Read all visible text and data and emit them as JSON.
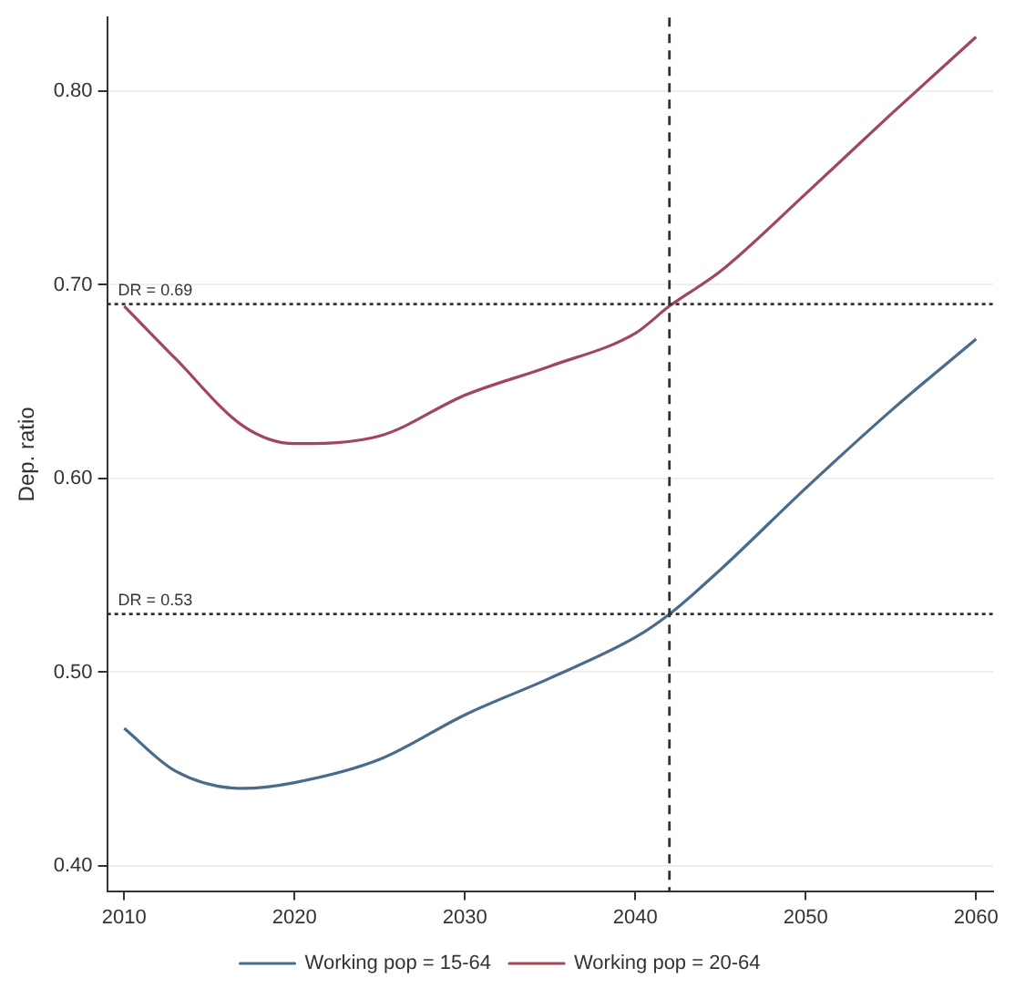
{
  "chart_data": {
    "type": "line",
    "ylabel": "Dep. ratio",
    "x": [
      2010,
      2013,
      2017,
      2020,
      2025,
      2030,
      2035,
      2040,
      2042,
      2045,
      2050,
      2055,
      2060
    ],
    "series": [
      {
        "name": "Working pop = 15-64",
        "color": "#4a6b8a",
        "values": [
          0.471,
          0.449,
          0.44,
          0.443,
          0.455,
          0.478,
          0.497,
          0.518,
          0.53,
          0.553,
          0.595,
          0.635,
          0.672
        ]
      },
      {
        "name": "Working pop = 20-64",
        "color": "#a0475a",
        "values": [
          0.689,
          0.662,
          0.627,
          0.618,
          0.622,
          0.643,
          0.658,
          0.675,
          0.689,
          0.707,
          0.747,
          0.788,
          0.828
        ]
      }
    ],
    "xlim": [
      2009,
      2061
    ],
    "xticks": [
      2010,
      2020,
      2030,
      2040,
      2050,
      2060
    ],
    "ylim": [
      0.387,
      0.838
    ],
    "yticks": [
      {
        "value": 0.4,
        "label": "0.40"
      },
      {
        "value": 0.5,
        "label": "0.50"
      },
      {
        "value": 0.6,
        "label": "0.60"
      },
      {
        "value": 0.7,
        "label": "0.70"
      },
      {
        "value": 0.8,
        "label": "0.80"
      }
    ],
    "ref_lines": [
      {
        "axis": "y",
        "value": 0.69,
        "label": "DR = 0.69",
        "color": "#333333",
        "line_style": "dotted"
      },
      {
        "axis": "y",
        "value": 0.53,
        "label": "DR = 0.53",
        "color": "#333333",
        "line_style": "dotted"
      },
      {
        "axis": "x",
        "value": 2042,
        "label": null,
        "color": "#333333",
        "line_style": "dashed"
      }
    ],
    "grid": "y",
    "legend": "bottom",
    "marker": "none",
    "line_style": "solid"
  }
}
